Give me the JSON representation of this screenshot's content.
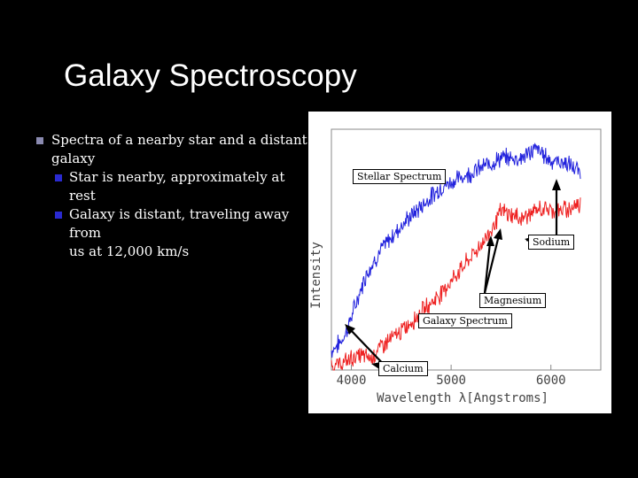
{
  "slide": {
    "title": "Galaxy Spectroscopy",
    "bullet1_line1": "Spectra of a nearby star and a distant",
    "bullet1_line2": "galaxy",
    "sub1": "Star is nearby, approximately at rest",
    "sub2_line1": "Galaxy is distant, traveling away from",
    "sub2_line2": "us at 12,000 km/s"
  },
  "colors": {
    "background": "#000000",
    "stellar": "#2222dd",
    "galaxy": "#ee2222"
  },
  "chart_data": {
    "type": "line",
    "xlabel": "Wavelength  λ[Angstroms]",
    "ylabel": "Intensity",
    "xlim": [
      3800,
      6500
    ],
    "ylim": [
      0,
      1
    ],
    "xticks": [
      4000,
      5000,
      6000
    ],
    "xtick_labels": [
      "4000",
      "5000",
      "6000"
    ],
    "series": [
      {
        "name": "Stellar Spectrum",
        "color": "#2222dd",
        "x": [
          3800,
          3900,
          3950,
          4050,
          4150,
          4300,
          4500,
          4700,
          4900,
          5100,
          5300,
          5500,
          5700,
          5850,
          6000,
          6150,
          6300
        ],
        "y": [
          0.08,
          0.12,
          0.16,
          0.28,
          0.4,
          0.5,
          0.6,
          0.68,
          0.76,
          0.8,
          0.84,
          0.88,
          0.88,
          0.92,
          0.87,
          0.86,
          0.82
        ]
      },
      {
        "name": "Galaxy Spectrum",
        "color": "#ee2222",
        "x": [
          3800,
          3900,
          4000,
          4100,
          4200,
          4300,
          4500,
          4700,
          4900,
          5100,
          5300,
          5400,
          5500,
          5700,
          5900,
          6100,
          6300
        ],
        "y": [
          0.02,
          0.02,
          0.05,
          0.06,
          0.05,
          0.1,
          0.16,
          0.24,
          0.32,
          0.42,
          0.52,
          0.58,
          0.66,
          0.63,
          0.67,
          0.66,
          0.69
        ]
      }
    ],
    "annotations": [
      {
        "text": "Stellar Spectrum"
      },
      {
        "text": "Sodium"
      },
      {
        "text": "Magnesium"
      },
      {
        "text": "Galaxy Spectrum"
      },
      {
        "text": "Calcium"
      }
    ]
  }
}
